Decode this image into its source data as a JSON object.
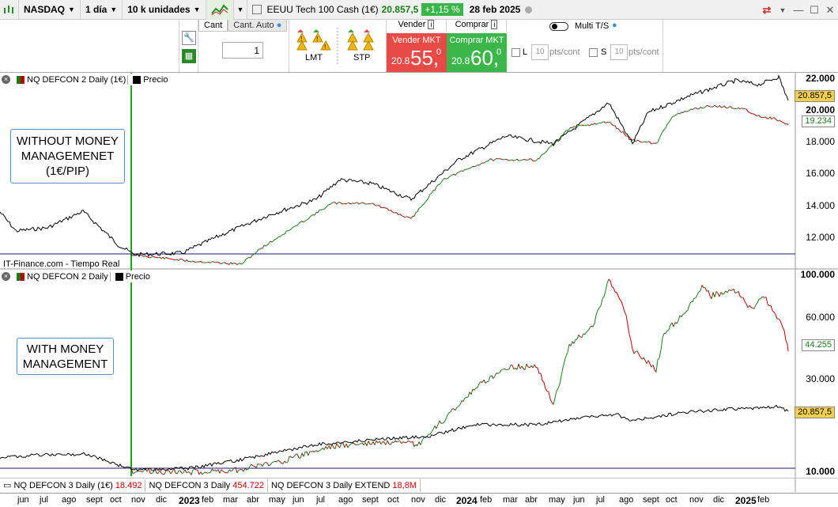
{
  "toolbar": {
    "market": "NASDAQ",
    "timeframe": "1 día",
    "units": "10 k unidades",
    "instrument": "EEUU Tech 100 Cash (1€)",
    "price": "20.857,5",
    "change": "+1,15 %",
    "date": "28 feb 2025"
  },
  "order": {
    "tab_qty": "Cant",
    "tab_auto": "Cant. Auto",
    "qty_value": "1",
    "lmt": "LMT",
    "stp": "STP",
    "sell_header": "Vender",
    "buy_header": "Comprar",
    "sell_caption": "Vender MKT",
    "buy_caption": "Comprar MKT",
    "sell_prefix": "20.8",
    "sell_big": "55,",
    "sell_sup": "0",
    "buy_prefix": "20.8",
    "buy_big": "60,",
    "buy_sup": "0",
    "multi": "Multi T/S",
    "l_label": "L",
    "s_label": "S",
    "pts_value": "10",
    "pts_label": "pts/cont"
  },
  "panel1": {
    "legend_name": "NQ DEFCON 2 Daily (1€)",
    "legend_price": "Precio",
    "note": "WITHOUT MONEY MANAGEMENET (1€/PIP)",
    "source": "IT-Finance.com - Tiempo Real",
    "axis": [
      "22.000",
      "20.000",
      "18.000",
      "16.000",
      "14.000",
      "12.000"
    ],
    "tag_price": "20.857,5",
    "tag_system": "19.234"
  },
  "panel2": {
    "legend_name": "NQ DEFCON 2 Daily",
    "legend_price": "Precio",
    "note": "WITH MONEY MANAGEMENT",
    "axis": [
      "100.000",
      "60.000",
      "30.000",
      "10.000"
    ],
    "tag_system": "44.255",
    "tag_price": "20.857,5"
  },
  "bottom": {
    "seg1_label": "NQ DEFCON 3 Daily (1€)",
    "seg1_value": "18.492",
    "seg2_label": "NQ DEFCON 3 Daily",
    "seg2_value": "454.722",
    "seg3_label": "NQ DEFCON 3 Daily EXTEND",
    "seg3_value": "18,8M"
  },
  "xaxis": [
    "jun",
    "jul",
    "ago",
    "sept",
    "oct",
    "nov",
    "dic",
    "2023",
    "feb",
    "mar",
    "abr",
    "may",
    "jun",
    "jul",
    "ago",
    "sept",
    "oct",
    "nov",
    "dic",
    "2024",
    "feb",
    "mar",
    "abr",
    "may",
    "jun",
    "jul",
    "ago",
    "sept",
    "oct",
    "nov",
    "dic",
    "2025",
    "feb"
  ],
  "colors": {
    "price_line": "#000000",
    "equity_up": "#1a7a1a",
    "equity_down": "#b00000",
    "marker_line": "#1aa31a",
    "change_badge": "#39b54a",
    "sell": "#e84b45",
    "buy": "#3cb54a"
  }
}
